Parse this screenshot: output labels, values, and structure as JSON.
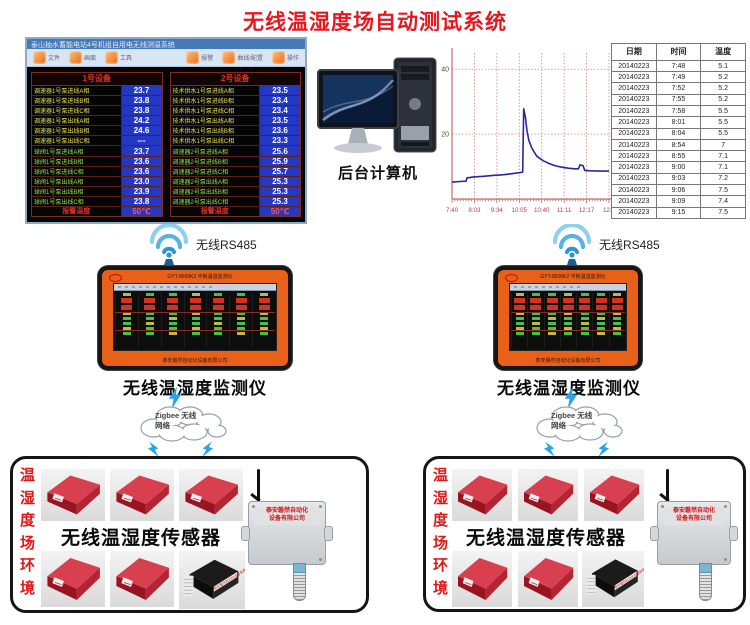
{
  "title": "无线温湿度场自动测试系统",
  "accent_color": "#e8171e",
  "backend_computer_label": "后台计算机",
  "wireless_rs485_label": "无线RS485",
  "monitor_screenshot": {
    "window_title": "泰山抽水蓄能电站4号机组自用电无线测温系统",
    "toolbar": [
      {
        "label": "文件"
      },
      {
        "label": "画面"
      },
      {
        "label": "工具"
      },
      {
        "label": "报警"
      },
      {
        "label": "曲线/配置"
      },
      {
        "label": "操作"
      }
    ],
    "panels": [
      {
        "header": "1号设备",
        "alarm_label": "报警温度",
        "alarm_value": "50℃",
        "rows": [
          {
            "label": "调速器1号泵进线A相",
            "value": "23.7"
          },
          {
            "label": "调速器1号泵进线B相",
            "value": "23.8"
          },
          {
            "label": "调速器1号泵进线C相",
            "value": "23.8"
          },
          {
            "label": "调速器1号泵出线A相",
            "value": "24.2"
          },
          {
            "label": "调速器1号泵出线B相",
            "value": "24.6"
          },
          {
            "label": "调速器1号泵出线C相",
            "value": "---"
          },
          {
            "label": "球阀1号泵进线A相",
            "value": "23.7"
          },
          {
            "label": "球阀1号泵进线B相",
            "value": "23.6"
          },
          {
            "label": "球阀1号泵进线C相",
            "value": "23.6"
          },
          {
            "label": "球阀1号泵出线A相",
            "value": "23.0"
          },
          {
            "label": "球阀1号泵出线B相",
            "value": "23.9"
          },
          {
            "label": "球阀1号泵出线C相",
            "value": "23.8"
          }
        ]
      },
      {
        "header": "2号设备",
        "alarm_label": "报警温度",
        "alarm_value": "50℃",
        "rows": [
          {
            "label": "技术供水1号泵进线A相",
            "value": "23.5"
          },
          {
            "label": "技术供水1号泵进线B相",
            "value": "23.4"
          },
          {
            "label": "技术供水1号泵进线C相",
            "value": "23.4"
          },
          {
            "label": "技术供水1号泵出线A相",
            "value": "23.5"
          },
          {
            "label": "技术供水1号泵出线B相",
            "value": "23.6"
          },
          {
            "label": "技术供水1号泵出线C相",
            "value": "23.3"
          },
          {
            "label": "调速器2号泵进线A相",
            "value": "25.6"
          },
          {
            "label": "调速器2号泵进线B相",
            "value": "25.9"
          },
          {
            "label": "调速器2号泵进线C相",
            "value": "25.7"
          },
          {
            "label": "调速器2号泵出线A相",
            "value": "25.3"
          },
          {
            "label": "调速器2号泵出线B相",
            "value": "25.3"
          },
          {
            "label": "调速器2号泵出线C相",
            "value": "25.3"
          }
        ]
      }
    ]
  },
  "chart_data": {
    "type": "line",
    "title": "",
    "xlabel": "",
    "ylabel": "",
    "x_tick_labels": [
      "7:40",
      "8:03",
      "9:34",
      "10:05",
      "10:40",
      "11:11",
      "12:17",
      "12:4"
    ],
    "yticks": [
      20,
      40
    ],
    "ylim": [
      0,
      45
    ],
    "grid": true,
    "legend": false,
    "series": [
      {
        "name": "温度",
        "color": "#28289a",
        "points": [
          [
            0.0,
            5.2
          ],
          [
            0.05,
            5.4
          ],
          [
            0.09,
            5.5
          ],
          [
            0.095,
            6.5
          ],
          [
            0.14,
            6.8
          ],
          [
            0.2,
            7.0
          ],
          [
            0.27,
            7.3
          ],
          [
            0.33,
            7.5
          ],
          [
            0.38,
            7.8
          ],
          [
            0.43,
            8.1
          ],
          [
            0.45,
            8.3
          ],
          [
            0.457,
            27.8
          ],
          [
            0.468,
            25.0
          ],
          [
            0.478,
            21.0
          ],
          [
            0.49,
            18.0
          ],
          [
            0.51,
            15.5
          ],
          [
            0.54,
            13.2
          ],
          [
            0.58,
            11.8
          ],
          [
            0.62,
            10.9
          ],
          [
            0.66,
            10.2
          ],
          [
            0.7,
            9.8
          ],
          [
            0.74,
            9.5
          ],
          [
            0.78,
            9.3
          ],
          [
            0.805,
            9.3
          ],
          [
            0.815,
            10.5
          ],
          [
            0.835,
            10.3
          ],
          [
            0.845,
            8.8
          ],
          [
            0.88,
            8.7
          ],
          [
            0.94,
            8.6
          ],
          [
            1.0,
            8.6
          ]
        ]
      }
    ]
  },
  "data_table": {
    "headers": [
      "日期",
      "时间",
      "温度"
    ],
    "rows": [
      [
        "20140223",
        "7:48",
        "5.1"
      ],
      [
        "20140223",
        "7:49",
        "5.2"
      ],
      [
        "20140223",
        "7:52",
        "5.2"
      ],
      [
        "20140223",
        "7:55",
        "5.2"
      ],
      [
        "20140223",
        "7:58",
        "5.5"
      ],
      [
        "20140223",
        "8:01",
        "5.5"
      ],
      [
        "20140223",
        "8:04",
        "5.5"
      ],
      [
        "20140223",
        "8:54",
        "7"
      ],
      [
        "20140223",
        "8:55",
        "7.1"
      ],
      [
        "20140223",
        "9:00",
        "7.1"
      ],
      [
        "20140223",
        "9:03",
        "7.2"
      ],
      [
        "20140223",
        "9:06",
        "7.5"
      ],
      [
        "20140223",
        "9:09",
        "7.4"
      ],
      [
        "20140223",
        "9:15",
        "7.5"
      ]
    ]
  },
  "handheld_device": {
    "model_text": "GYT-8500K2 平板温湿监测仪",
    "bottom_text": "泰安磐然自动化设备有限公司",
    "label": "无线温湿度监测仪"
  },
  "zigbee_cloud": {
    "line1": "Zigbee 无线",
    "line2": "网络"
  },
  "sensor_box": {
    "vertical_label": "温湿度场环境",
    "center_label": "无线温湿度传感器",
    "wall_sensor_line1": "泰安磐然自动化",
    "wall_sensor_line2": "设备有限公司",
    "black_sensor_text": "泰安磐然自动化设备有限公司"
  }
}
